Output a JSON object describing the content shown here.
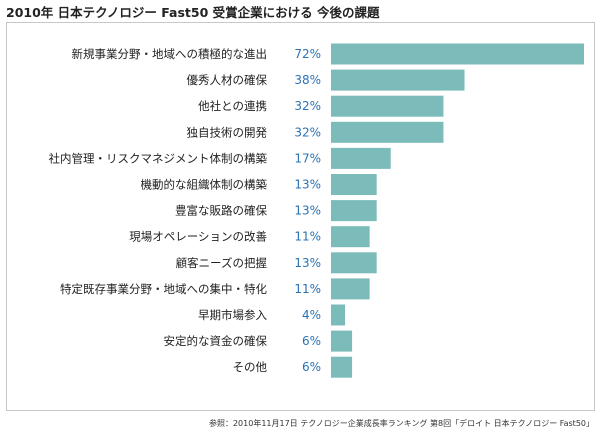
{
  "chart_data": {
    "type": "bar",
    "orientation": "horizontal",
    "title": "2010年 日本テクノロジー Fast50 受賞企業における 今後の課題",
    "categories": [
      "新規事業分野・地域への積極的な進出",
      "優秀人材の確保",
      "他社との連携",
      "独自技術の開発",
      "社内管理・リスクマネジメント体制の構築",
      "機動的な組織体制の構築",
      "豊富な販路の確保",
      "現場オペレーションの改善",
      "顧客ニーズの把握",
      "特定既存事業分野・地域への集中・特化",
      "早期市場参入",
      "安定的な資金の確保",
      "その他"
    ],
    "values": [
      72,
      38,
      32,
      32,
      17,
      13,
      13,
      11,
      13,
      11,
      4,
      6,
      6
    ],
    "value_labels": [
      "72%",
      "38%",
      "32%",
      "32%",
      "17%",
      "13%",
      "13%",
      "11%",
      "13%",
      "11%",
      "4%",
      "6%",
      "6%"
    ],
    "unit": "%",
    "xlim": [
      0,
      72
    ],
    "grid": false,
    "bar_color": "#7bbcbb",
    "label_color": "#2a72b5"
  },
  "footnote": "参照：2010年11月17日 テクノロジー企業成長率ランキング 第8回「デロイト 日本テクノロジー Fast50」"
}
